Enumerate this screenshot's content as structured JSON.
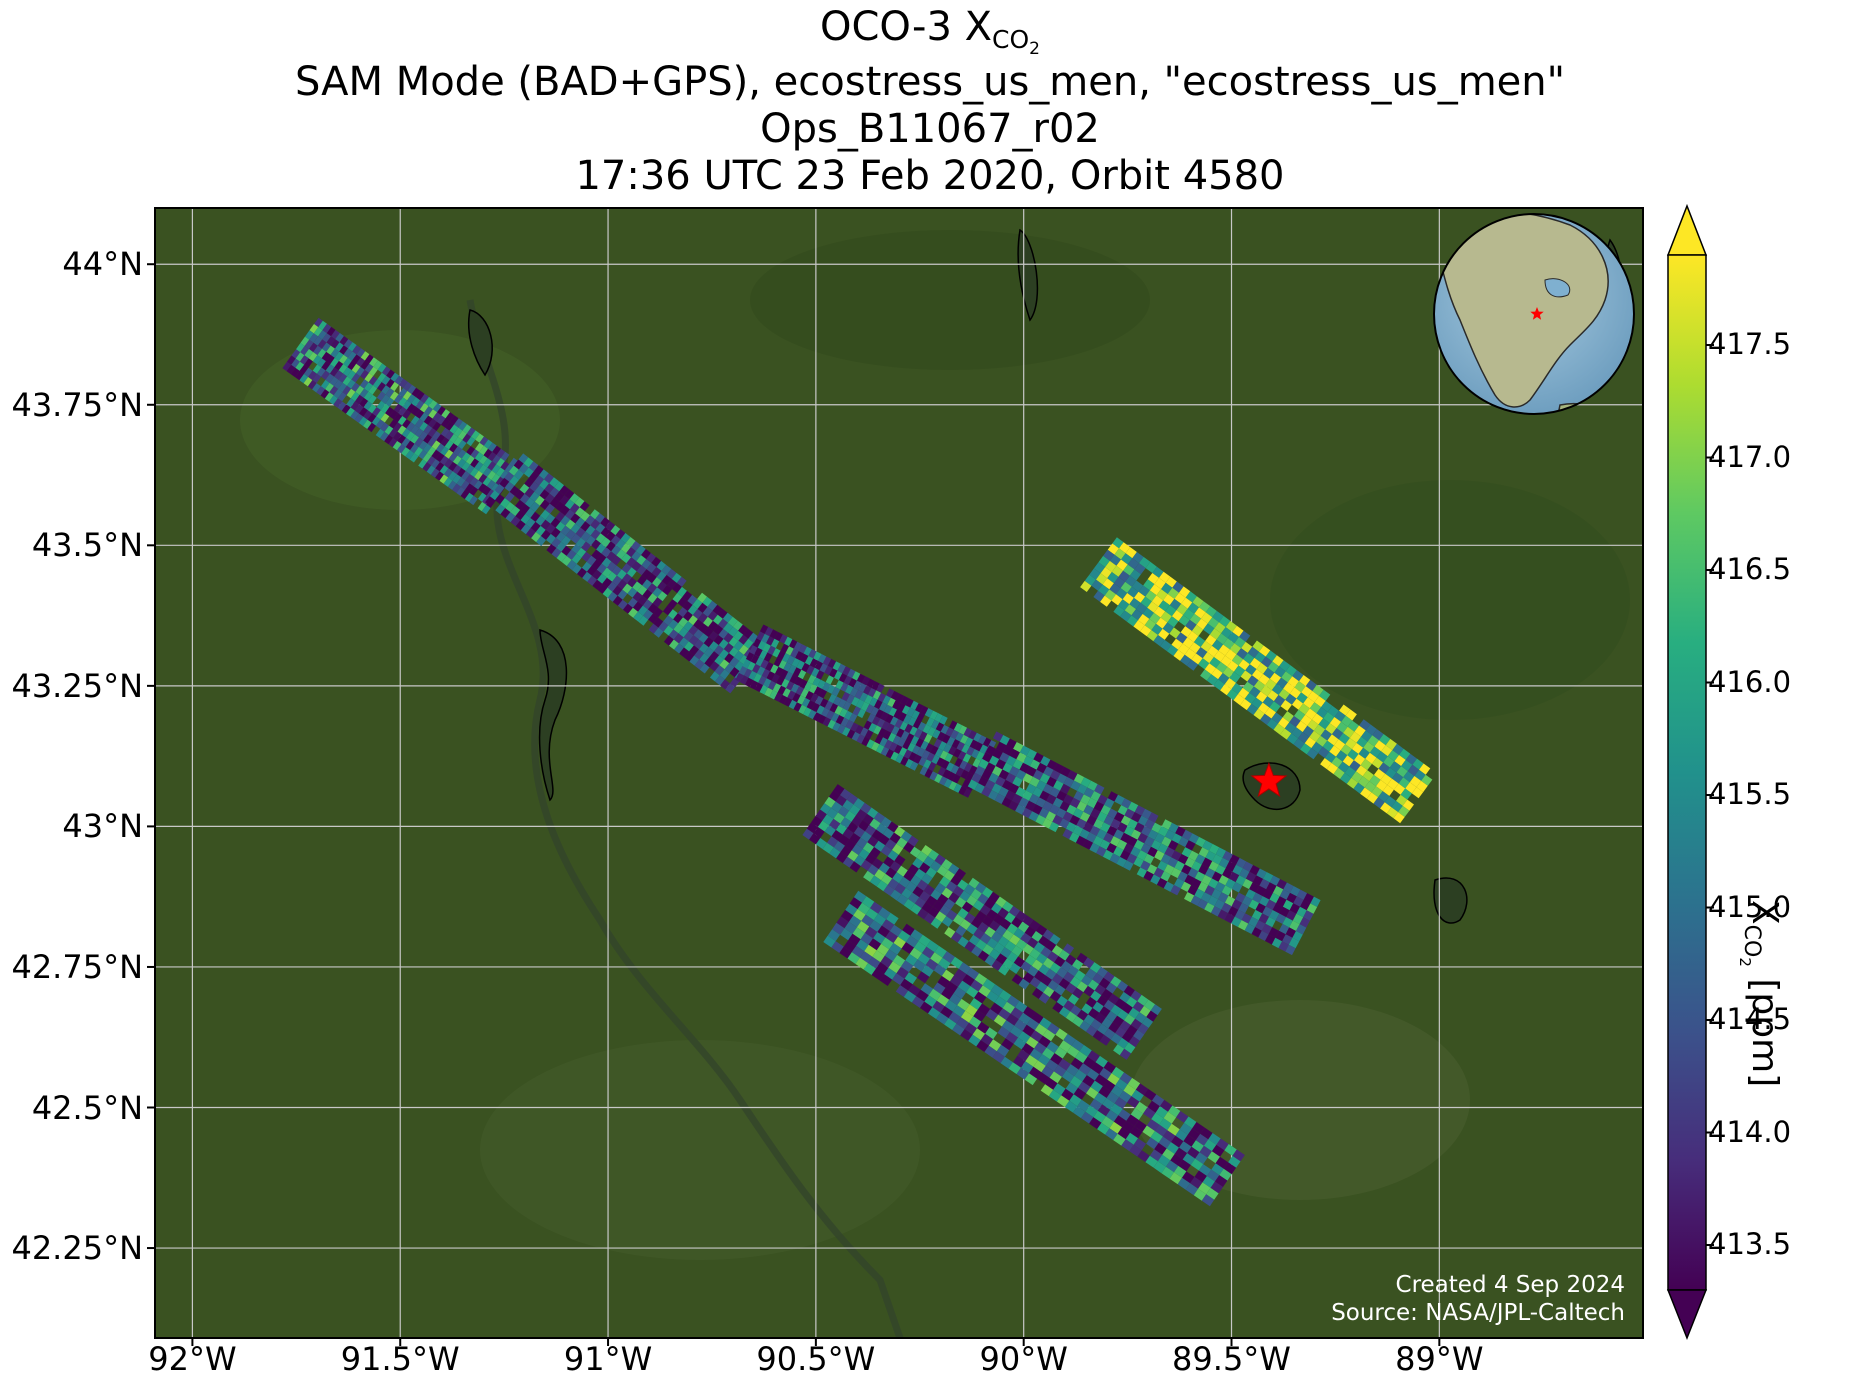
{
  "title": {
    "line1_prefix": "OCO-3 X",
    "line1_sub": "CO",
    "line1_subsub": "2",
    "line2": "SAM Mode (BAD+GPS), ecostress_us_men, \"ecostress_us_men\"",
    "line3": "Ops_B11067_r02",
    "line4": "17:36 UTC 23 Feb 2020, Orbit 4580"
  },
  "map": {
    "extent": {
      "lon_min": -92.09,
      "lon_max": -88.51,
      "lat_min": 42.09,
      "lat_max": 44.1
    },
    "lat_ticks": [
      {
        "value": 44.0,
        "label": "44°N"
      },
      {
        "value": 43.75,
        "label": "43.75°N"
      },
      {
        "value": 43.5,
        "label": "43.5°N"
      },
      {
        "value": 43.25,
        "label": "43.25°N"
      },
      {
        "value": 43.0,
        "label": "43°N"
      },
      {
        "value": 42.75,
        "label": "42.75°N"
      },
      {
        "value": 42.5,
        "label": "42.5°N"
      },
      {
        "value": 42.25,
        "label": "42.25°N"
      }
    ],
    "lon_ticks": [
      {
        "value": -92.0,
        "label": "92°W"
      },
      {
        "value": -91.5,
        "label": "91.5°W"
      },
      {
        "value": -91.0,
        "label": "91°W"
      },
      {
        "value": -90.5,
        "label": "90.5°W"
      },
      {
        "value": -90.0,
        "label": "90°W"
      },
      {
        "value": -89.5,
        "label": "89.5°W"
      },
      {
        "value": -89.0,
        "label": "89°W"
      }
    ],
    "basemap_color": "#3a5221",
    "target": {
      "lon": -89.41,
      "lat": 43.08,
      "marker": "red-star",
      "color": "#ff0000"
    },
    "credit_line1": "Created 4 Sep 2024",
    "credit_line2": "Source: NASA/JPL-Caltech"
  },
  "colorbar": {
    "colormap": "viridis",
    "min": 413.3,
    "max": 417.9,
    "extend": "both",
    "ticks": [
      {
        "value": 413.5,
        "label": "413.5"
      },
      {
        "value": 414.0,
        "label": "414.0"
      },
      {
        "value": 414.5,
        "label": "414.5"
      },
      {
        "value": 415.0,
        "label": "415.0"
      },
      {
        "value": 415.5,
        "label": "415.5"
      },
      {
        "value": 416.0,
        "label": "416.0"
      },
      {
        "value": 416.5,
        "label": "416.5"
      },
      {
        "value": 417.0,
        "label": "417.0"
      },
      {
        "value": 417.5,
        "label": "417.5"
      }
    ],
    "label_prefix": "X",
    "label_sub": "CO",
    "label_subsub": "2",
    "label_suffix": " [ppm]"
  },
  "inset_globe": {
    "marker": "red-star",
    "marker_lon": -89.4,
    "marker_lat": 43.1
  },
  "chart_data": {
    "type": "heatmap",
    "variable": "XCO2 [ppm]",
    "value_range": [
      413.3,
      417.9
    ],
    "swaths": [
      {
        "lon_from": -91.74,
        "lat_from": 43.86,
        "lon_to": -91.25,
        "lat_to": 43.6,
        "mean": 414.8
      },
      {
        "lon_from": -91.25,
        "lat_from": 43.62,
        "lon_to": -90.66,
        "lat_to": 43.28,
        "mean": 414.6
      },
      {
        "lon_from": -90.66,
        "lat_from": 43.31,
        "lon_to": -90.1,
        "lat_to": 43.1,
        "mean": 414.4
      },
      {
        "lon_from": -90.1,
        "lat_from": 43.12,
        "lon_to": -89.32,
        "lat_to": 42.82,
        "mean": 414.6
      },
      {
        "lon_from": -89.82,
        "lat_from": 43.47,
        "lon_to": -89.05,
        "lat_to": 43.05,
        "mean": 416.8
      },
      {
        "lon_from": -90.49,
        "lat_from": 43.03,
        "lon_to": -89.71,
        "lat_to": 42.63,
        "mean": 414.7
      },
      {
        "lon_from": -90.44,
        "lat_from": 42.84,
        "lon_to": -89.51,
        "lat_to": 42.37,
        "mean": 414.9
      }
    ]
  }
}
